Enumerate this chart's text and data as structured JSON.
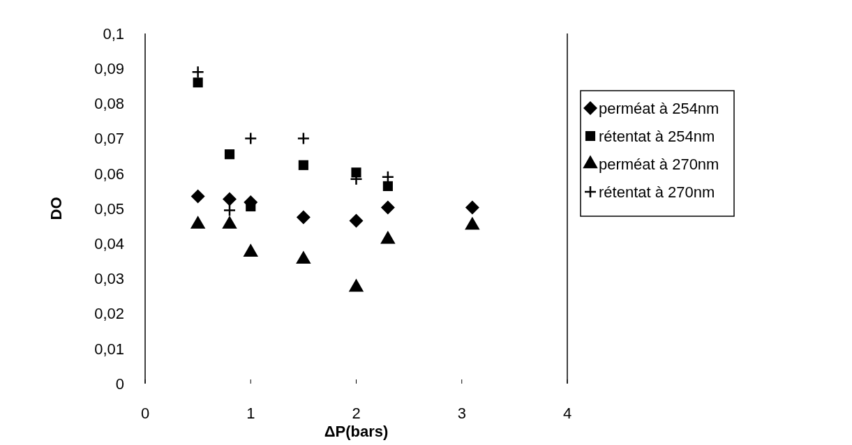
{
  "chart_data": {
    "type": "scatter",
    "xlabel": "ΔP(bars)",
    "ylabel": "DO",
    "xlim": [
      0,
      4
    ],
    "xticks": [
      0,
      1,
      2,
      3,
      4
    ],
    "ylim": [
      0,
      0.1
    ],
    "yticks": [
      {
        "value": 0,
        "label": "0"
      },
      {
        "value": 0.01,
        "label": "0,01"
      },
      {
        "value": 0.02,
        "label": "0,02"
      },
      {
        "value": 0.03,
        "label": "0,03"
      },
      {
        "value": 0.04,
        "label": "0,04"
      },
      {
        "value": 0.05,
        "label": "0,05"
      },
      {
        "value": 0.06,
        "label": "0,06"
      },
      {
        "value": 0.07,
        "label": "0,07"
      },
      {
        "value": 0.08,
        "label": "0,08"
      },
      {
        "value": 0.09,
        "label": "0,09"
      },
      {
        "value": 0.1,
        "label": "0,1"
      }
    ],
    "grid": false,
    "legend": "right",
    "series": [
      {
        "name": "perméat à 254nm",
        "color": "#000000",
        "marker": "diamond",
        "x": [
          0.5,
          0.8,
          1.0,
          1.5,
          2.0,
          2.3,
          3.1
        ],
        "values": [
          0.0535,
          0.0527,
          0.0518,
          0.0475,
          0.0465,
          0.0503,
          0.0503
        ]
      },
      {
        "name": "rétentat à 254nm",
        "color": "#000000",
        "marker": "square",
        "x": [
          0.5,
          0.8,
          1.0,
          1.5,
          2.0,
          2.3
        ],
        "values": [
          0.086,
          0.0655,
          0.0506,
          0.0624,
          0.0603,
          0.0564
        ]
      },
      {
        "name": "perméat à 270nm",
        "color": "#000000",
        "marker": "triangle",
        "x": [
          0.5,
          0.8,
          1.0,
          1.5,
          2.0,
          2.3,
          3.1
        ],
        "values": [
          0.0455,
          0.0455,
          0.0375,
          0.0355,
          0.0275,
          0.0412,
          0.0452
        ]
      },
      {
        "name": "rétentat à 270nm",
        "color": "#000000",
        "marker": "cross",
        "x": [
          0.5,
          0.8,
          1.0,
          1.5,
          2.0,
          2.3
        ],
        "values": [
          0.089,
          0.0495,
          0.07,
          0.07,
          0.0584,
          0.059
        ]
      }
    ]
  }
}
